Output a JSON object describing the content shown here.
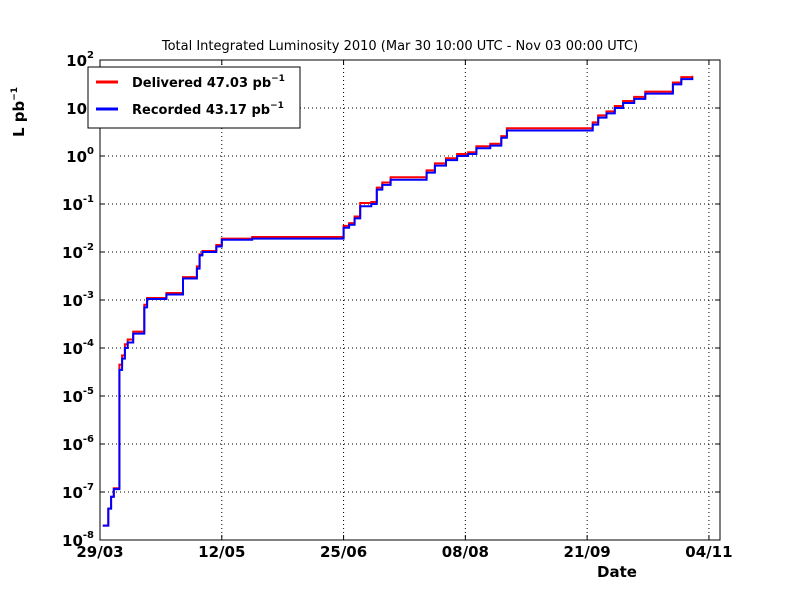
{
  "chart_data": {
    "type": "line",
    "title": "Total Integrated Luminosity 2010 (Mar 30 10:00 UTC - Nov 03 00:00 UTC)",
    "xlabel": "Date",
    "ylabel_base": "L pb",
    "ylabel_exp": "−1",
    "y_scale": "log",
    "ylim": [
      1e-08,
      100
    ],
    "xlim": [
      "2010-03-29",
      "2010-11-08"
    ],
    "x_ticks": [
      {
        "date": "2010-03-29",
        "label": "29/03"
      },
      {
        "date": "2010-05-12",
        "label": "12/05"
      },
      {
        "date": "2010-06-25",
        "label": "25/06"
      },
      {
        "date": "2010-08-08",
        "label": "08/08"
      },
      {
        "date": "2010-09-21",
        "label": "21/09"
      },
      {
        "date": "2010-11-04",
        "label": "04/11"
      }
    ],
    "y_ticks": [
      {
        "value": 1e-08,
        "base": "10",
        "exp": "-8"
      },
      {
        "value": 1e-07,
        "base": "10",
        "exp": "-7"
      },
      {
        "value": 1e-06,
        "base": "10",
        "exp": "-6"
      },
      {
        "value": 1e-05,
        "base": "10",
        "exp": "-5"
      },
      {
        "value": 0.0001,
        "base": "10",
        "exp": "-4"
      },
      {
        "value": 0.001,
        "base": "10",
        "exp": "-3"
      },
      {
        "value": 0.01,
        "base": "10",
        "exp": "-2"
      },
      {
        "value": 0.1,
        "base": "10",
        "exp": "-1"
      },
      {
        "value": 1,
        "base": "10",
        "exp": "0"
      },
      {
        "value": 10,
        "base": "10",
        "exp": "1"
      },
      {
        "value": 100,
        "base": "10",
        "exp": "2"
      }
    ],
    "grid": true,
    "legend_position": "top-left",
    "series": [
      {
        "name": "Delivered 47.03 pb",
        "name_sup": "−1",
        "color": "#ff0000",
        "points": [
          [
            "2010-03-30",
            2e-08
          ],
          [
            "2010-03-31",
            2e-08
          ],
          [
            "2010-04-01",
            4.5e-08
          ],
          [
            "2010-04-02",
            8e-08
          ],
          [
            "2010-04-03",
            1.2e-07
          ],
          [
            "2010-04-05",
            1.2e-07
          ],
          [
            "2010-04-05",
            4.5e-05
          ],
          [
            "2010-04-06",
            7e-05
          ],
          [
            "2010-04-07",
            0.00012
          ],
          [
            "2010-04-08",
            0.00015
          ],
          [
            "2010-04-10",
            0.00022
          ],
          [
            "2010-04-14",
            0.00022
          ],
          [
            "2010-04-14",
            0.0008
          ],
          [
            "2010-04-15",
            0.0011
          ],
          [
            "2010-04-21",
            0.0011
          ],
          [
            "2010-04-22",
            0.0014
          ],
          [
            "2010-04-27",
            0.0014
          ],
          [
            "2010-04-28",
            0.003
          ],
          [
            "2010-05-02",
            0.003
          ],
          [
            "2010-05-03",
            0.005
          ],
          [
            "2010-05-04",
            0.009
          ],
          [
            "2010-05-05",
            0.0105
          ],
          [
            "2010-05-08",
            0.0105
          ],
          [
            "2010-05-10",
            0.014
          ],
          [
            "2010-05-12",
            0.019
          ],
          [
            "2010-05-22",
            0.019
          ],
          [
            "2010-05-23",
            0.0205
          ],
          [
            "2010-06-24",
            0.0205
          ],
          [
            "2010-06-25",
            0.035
          ],
          [
            "2010-06-27",
            0.04
          ],
          [
            "2010-06-29",
            0.055
          ],
          [
            "2010-07-01",
            0.105
          ],
          [
            "2010-07-05",
            0.11
          ],
          [
            "2010-07-07",
            0.22
          ],
          [
            "2010-07-09",
            0.28
          ],
          [
            "2010-07-12",
            0.36
          ],
          [
            "2010-07-22",
            0.36
          ],
          [
            "2010-07-25",
            0.5
          ],
          [
            "2010-07-28",
            0.7
          ],
          [
            "2010-08-01",
            0.9
          ],
          [
            "2010-08-05",
            1.1
          ],
          [
            "2010-08-09",
            1.2
          ],
          [
            "2010-08-12",
            1.6
          ],
          [
            "2010-08-17",
            1.8
          ],
          [
            "2010-08-21",
            2.6
          ],
          [
            "2010-08-23",
            3.8
          ],
          [
            "2010-09-20",
            3.8
          ],
          [
            "2010-09-23",
            5
          ],
          [
            "2010-09-25",
            7
          ],
          [
            "2010-09-28",
            8.5
          ],
          [
            "2010-10-01",
            11
          ],
          [
            "2010-10-04",
            14
          ],
          [
            "2010-10-08",
            17
          ],
          [
            "2010-10-12",
            22
          ],
          [
            "2010-10-19",
            22
          ],
          [
            "2010-10-22",
            34
          ],
          [
            "2010-10-25",
            44
          ],
          [
            "2010-10-29",
            47.03
          ]
        ]
      },
      {
        "name": "Recorded 43.17 pb",
        "name_sup": "−1",
        "color": "#0000ff",
        "points": [
          [
            "2010-03-30",
            2e-08
          ],
          [
            "2010-03-31",
            2e-08
          ],
          [
            "2010-04-01",
            4.5e-08
          ],
          [
            "2010-04-02",
            8e-08
          ],
          [
            "2010-04-03",
            1.15e-07
          ],
          [
            "2010-04-05",
            1.15e-07
          ],
          [
            "2010-04-05",
            3.5e-05
          ],
          [
            "2010-04-06",
            6e-05
          ],
          [
            "2010-04-07",
            0.0001
          ],
          [
            "2010-04-08",
            0.00013
          ],
          [
            "2010-04-10",
            0.0002
          ],
          [
            "2010-04-14",
            0.0002
          ],
          [
            "2010-04-14",
            0.0007
          ],
          [
            "2010-04-15",
            0.00105
          ],
          [
            "2010-04-21",
            0.00105
          ],
          [
            "2010-04-22",
            0.0013
          ],
          [
            "2010-04-27",
            0.0013
          ],
          [
            "2010-04-28",
            0.0028
          ],
          [
            "2010-05-02",
            0.0028
          ],
          [
            "2010-05-03",
            0.0045
          ],
          [
            "2010-05-04",
            0.0085
          ],
          [
            "2010-05-05",
            0.01
          ],
          [
            "2010-05-08",
            0.01
          ],
          [
            "2010-05-10",
            0.013
          ],
          [
            "2010-05-12",
            0.018
          ],
          [
            "2010-05-22",
            0.018
          ],
          [
            "2010-05-23",
            0.019
          ],
          [
            "2010-06-24",
            0.019
          ],
          [
            "2010-06-25",
            0.032
          ],
          [
            "2010-06-27",
            0.037
          ],
          [
            "2010-06-29",
            0.05
          ],
          [
            "2010-07-01",
            0.09
          ],
          [
            "2010-07-05",
            0.1
          ],
          [
            "2010-07-07",
            0.2
          ],
          [
            "2010-07-09",
            0.25
          ],
          [
            "2010-07-12",
            0.32
          ],
          [
            "2010-07-22",
            0.32
          ],
          [
            "2010-07-25",
            0.45
          ],
          [
            "2010-07-28",
            0.63
          ],
          [
            "2010-08-01",
            0.82
          ],
          [
            "2010-08-05",
            1
          ],
          [
            "2010-08-09",
            1.1
          ],
          [
            "2010-08-12",
            1.45
          ],
          [
            "2010-08-17",
            1.65
          ],
          [
            "2010-08-21",
            2.4
          ],
          [
            "2010-08-23",
            3.4
          ],
          [
            "2010-09-20",
            3.4
          ],
          [
            "2010-09-23",
            4.5
          ],
          [
            "2010-09-25",
            6.3
          ],
          [
            "2010-09-28",
            7.7
          ],
          [
            "2010-10-01",
            10
          ],
          [
            "2010-10-04",
            12.7
          ],
          [
            "2010-10-08",
            15.5
          ],
          [
            "2010-10-12",
            20
          ],
          [
            "2010-10-19",
            20
          ],
          [
            "2010-10-22",
            31
          ],
          [
            "2010-10-25",
            40
          ],
          [
            "2010-10-29",
            43.17
          ]
        ]
      }
    ]
  }
}
